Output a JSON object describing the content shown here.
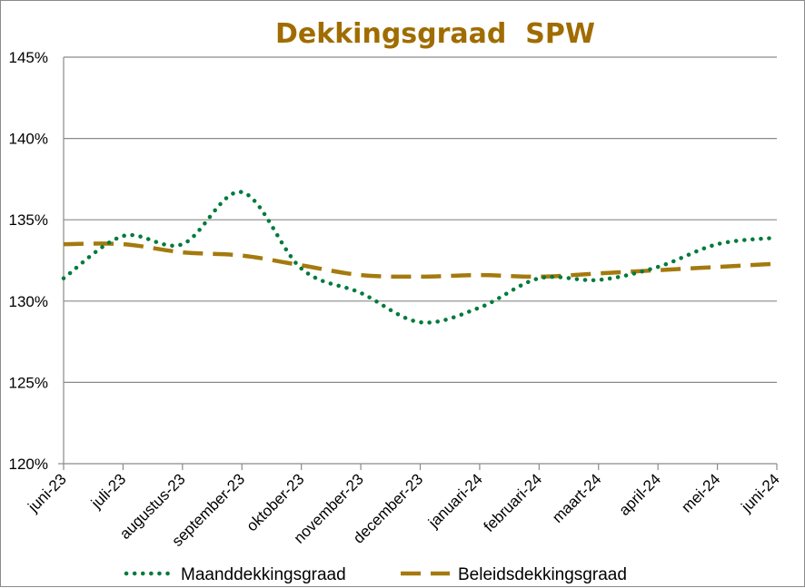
{
  "chart_data": {
    "type": "line",
    "title": "Dekkingsgraad  SPW",
    "xlabel": "",
    "ylabel": "",
    "categories": [
      "juni-23",
      "juli-23",
      "augustus-23",
      "september-23",
      "oktober-23",
      "november-23",
      "december-23",
      "januari-24",
      "februari-24",
      "maart-24",
      "april-24",
      "mei-24",
      "juni-24"
    ],
    "ylim": [
      120,
      145
    ],
    "ytick_values": [
      120,
      125,
      130,
      135,
      140,
      145
    ],
    "ytick_labels": [
      "120%",
      "125%",
      "130%",
      "135%",
      "140%",
      "145%"
    ],
    "grid": true,
    "legend_position": "bottom",
    "series": [
      {
        "name": "Maanddekkingsgraad",
        "style": "dotted",
        "color": "#007A3D",
        "values": [
          131.4,
          134.0,
          133.5,
          136.7,
          132.0,
          130.5,
          128.7,
          129.6,
          131.4,
          131.3,
          132.1,
          133.5,
          133.9
        ]
      },
      {
        "name": "Beleidsdekkingsgraad",
        "style": "dashed",
        "color": "#A47A0E",
        "values": [
          133.5,
          133.5,
          133.0,
          132.8,
          132.2,
          131.6,
          131.5,
          131.6,
          131.5,
          131.7,
          131.9,
          132.1,
          132.3
        ]
      }
    ],
    "title_color": "#A06C00"
  }
}
